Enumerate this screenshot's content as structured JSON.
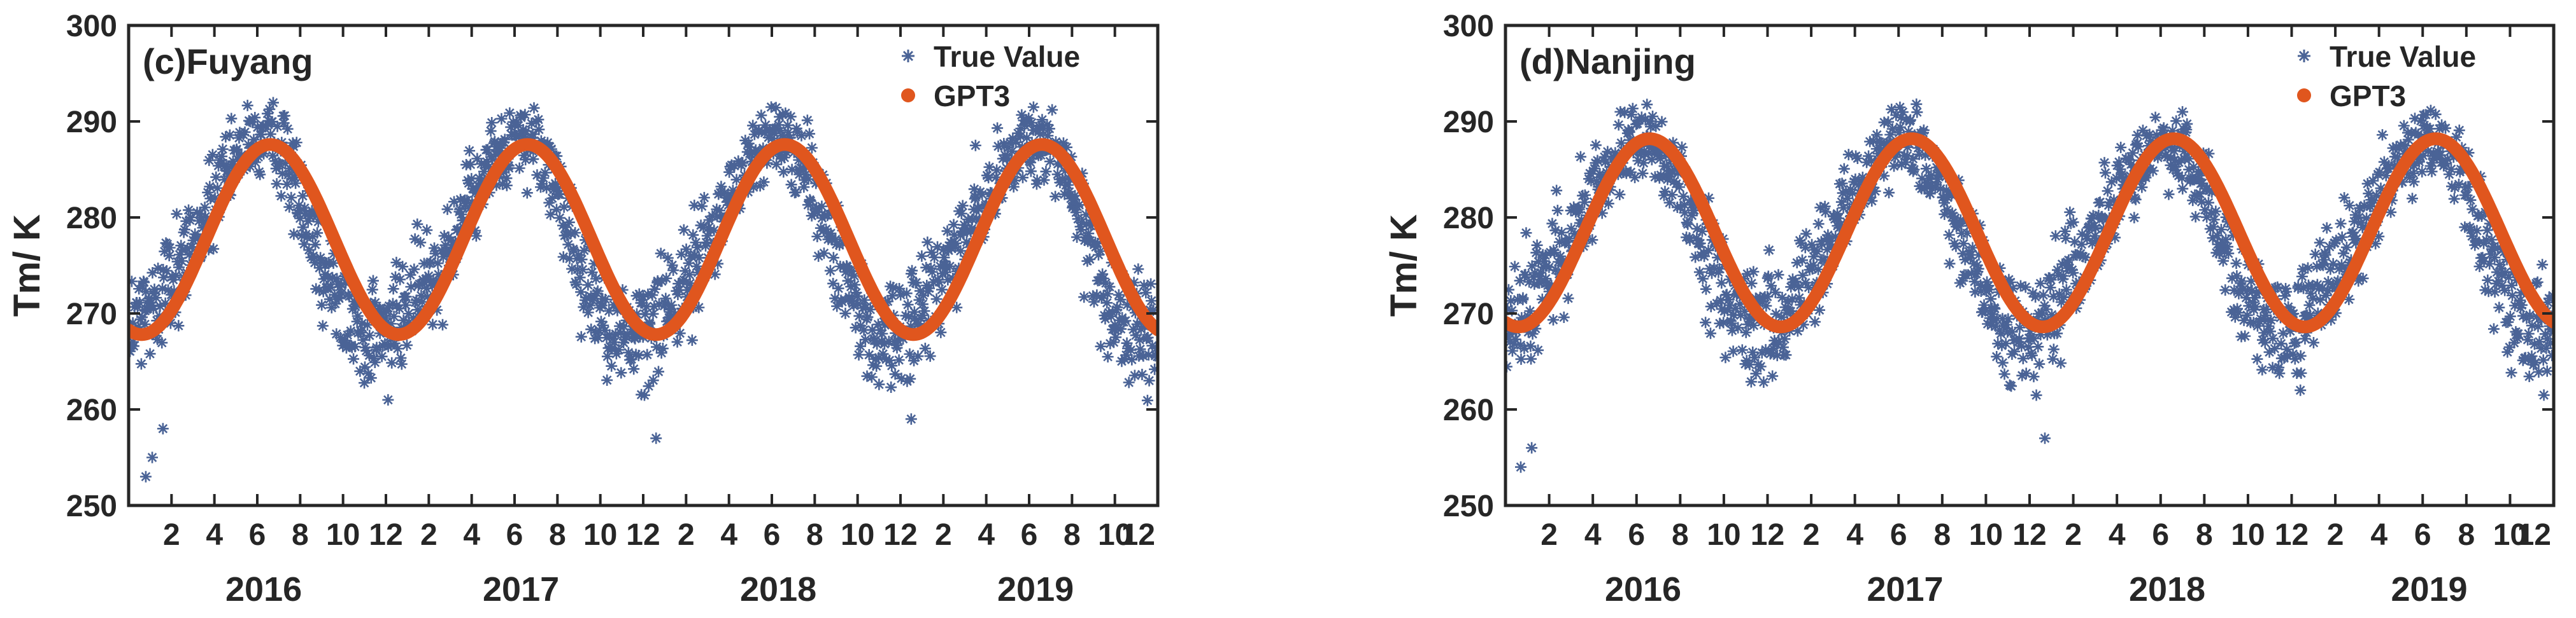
{
  "colors": {
    "true_value": "#4a6396",
    "gpt3": "#e0561e",
    "axis": "#262626",
    "background": "#ffffff"
  },
  "chart_data": [
    {
      "type": "scatter+line",
      "panel_label": "(c)Fuyang",
      "ylabel": "Tm/ K",
      "ylim": [
        250,
        300
      ],
      "yticks": [
        250,
        260,
        270,
        280,
        290,
        300
      ],
      "ytick_labels": [
        "250",
        "260",
        "270",
        "280",
        "290",
        "300"
      ],
      "x_unit": "month index (0 = start of Jan 2016)",
      "xlim": [
        0,
        48
      ],
      "xticks": [
        2,
        4,
        6,
        8,
        10,
        12,
        14,
        16,
        18,
        20,
        22,
        24,
        26,
        28,
        30,
        32,
        34,
        36,
        38,
        40,
        42,
        44,
        46,
        48
      ],
      "xtick_labels": [
        "2",
        "4",
        "6",
        "8",
        "10",
        "12",
        "2",
        "4",
        "6",
        "8",
        "10",
        "12",
        "2",
        "4",
        "6",
        "8",
        "10",
        "12",
        "2",
        "4",
        "6",
        "8",
        "10",
        "12"
      ],
      "years": [
        "2016",
        "2017",
        "2018",
        "2019"
      ],
      "legend": {
        "placement": "top-right",
        "entries": [
          "True Value",
          "GPT3"
        ]
      },
      "gpt3": {
        "name": "GPT3",
        "mean": 277.7,
        "amplitude": 9.9,
        "phase_month": 6.6
      },
      "true_value_envelope": {
        "name": "True Value",
        "month": [
          0,
          1,
          2,
          3,
          4,
          5,
          6,
          7,
          8,
          9,
          10,
          11,
          12
        ],
        "lower": [
          260,
          263,
          266,
          271,
          276,
          281,
          283,
          282,
          276,
          268,
          263,
          261,
          260
        ],
        "upper": [
          276,
          278,
          281,
          284,
          288,
          291,
          293,
          293,
          289,
          283,
          277,
          275,
          276
        ]
      },
      "outliers": [
        [
          0.8,
          253
        ],
        [
          1.1,
          255
        ],
        [
          1.6,
          258
        ],
        [
          24.6,
          257
        ],
        [
          36.5,
          259
        ],
        [
          39.5,
          287.5
        ],
        [
          12.1,
          261
        ],
        [
          47.6,
          263
        ]
      ]
    },
    {
      "type": "scatter+line",
      "panel_label": "(d)Nanjing",
      "ylabel": "Tm/ K",
      "ylim": [
        250,
        300
      ],
      "yticks": [
        250,
        260,
        270,
        280,
        290,
        300
      ],
      "ytick_labels": [
        "250",
        "260",
        "270",
        "280",
        "290",
        "300"
      ],
      "x_unit": "month index (0 = start of Jan 2016)",
      "xlim": [
        0,
        48
      ],
      "xticks": [
        2,
        4,
        6,
        8,
        10,
        12,
        14,
        16,
        18,
        20,
        22,
        24,
        26,
        28,
        30,
        32,
        34,
        36,
        38,
        40,
        42,
        44,
        46,
        48
      ],
      "xtick_labels": [
        "2",
        "4",
        "6",
        "8",
        "10",
        "12",
        "2",
        "4",
        "6",
        "8",
        "10",
        "12",
        "2",
        "4",
        "6",
        "8",
        "10",
        "12",
        "2",
        "4",
        "6",
        "8",
        "10",
        "12"
      ],
      "years": [
        "2016",
        "2017",
        "2018",
        "2019"
      ],
      "legend": {
        "placement": "top-right",
        "entries": [
          "True Value",
          "GPT3"
        ]
      },
      "gpt3": {
        "name": "GPT3",
        "mean": 278.4,
        "amplitude": 9.8,
        "phase_month": 6.6
      },
      "true_value_envelope": {
        "name": "True Value",
        "month": [
          0,
          1,
          2,
          3,
          4,
          5,
          6,
          7,
          8,
          9,
          10,
          11,
          12
        ],
        "lower": [
          260,
          263,
          267,
          271,
          276,
          281,
          283,
          282,
          277,
          269,
          264,
          261,
          260
        ],
        "upper": [
          276,
          279,
          282,
          285,
          289,
          291,
          293,
          292,
          289,
          284,
          278,
          276,
          276
        ]
      },
      "outliers": [
        [
          0.7,
          254
        ],
        [
          1.2,
          256
        ],
        [
          24.7,
          257
        ],
        [
          36.4,
          262
        ],
        [
          31.0,
          291
        ],
        [
          47.7,
          264
        ]
      ]
    }
  ]
}
